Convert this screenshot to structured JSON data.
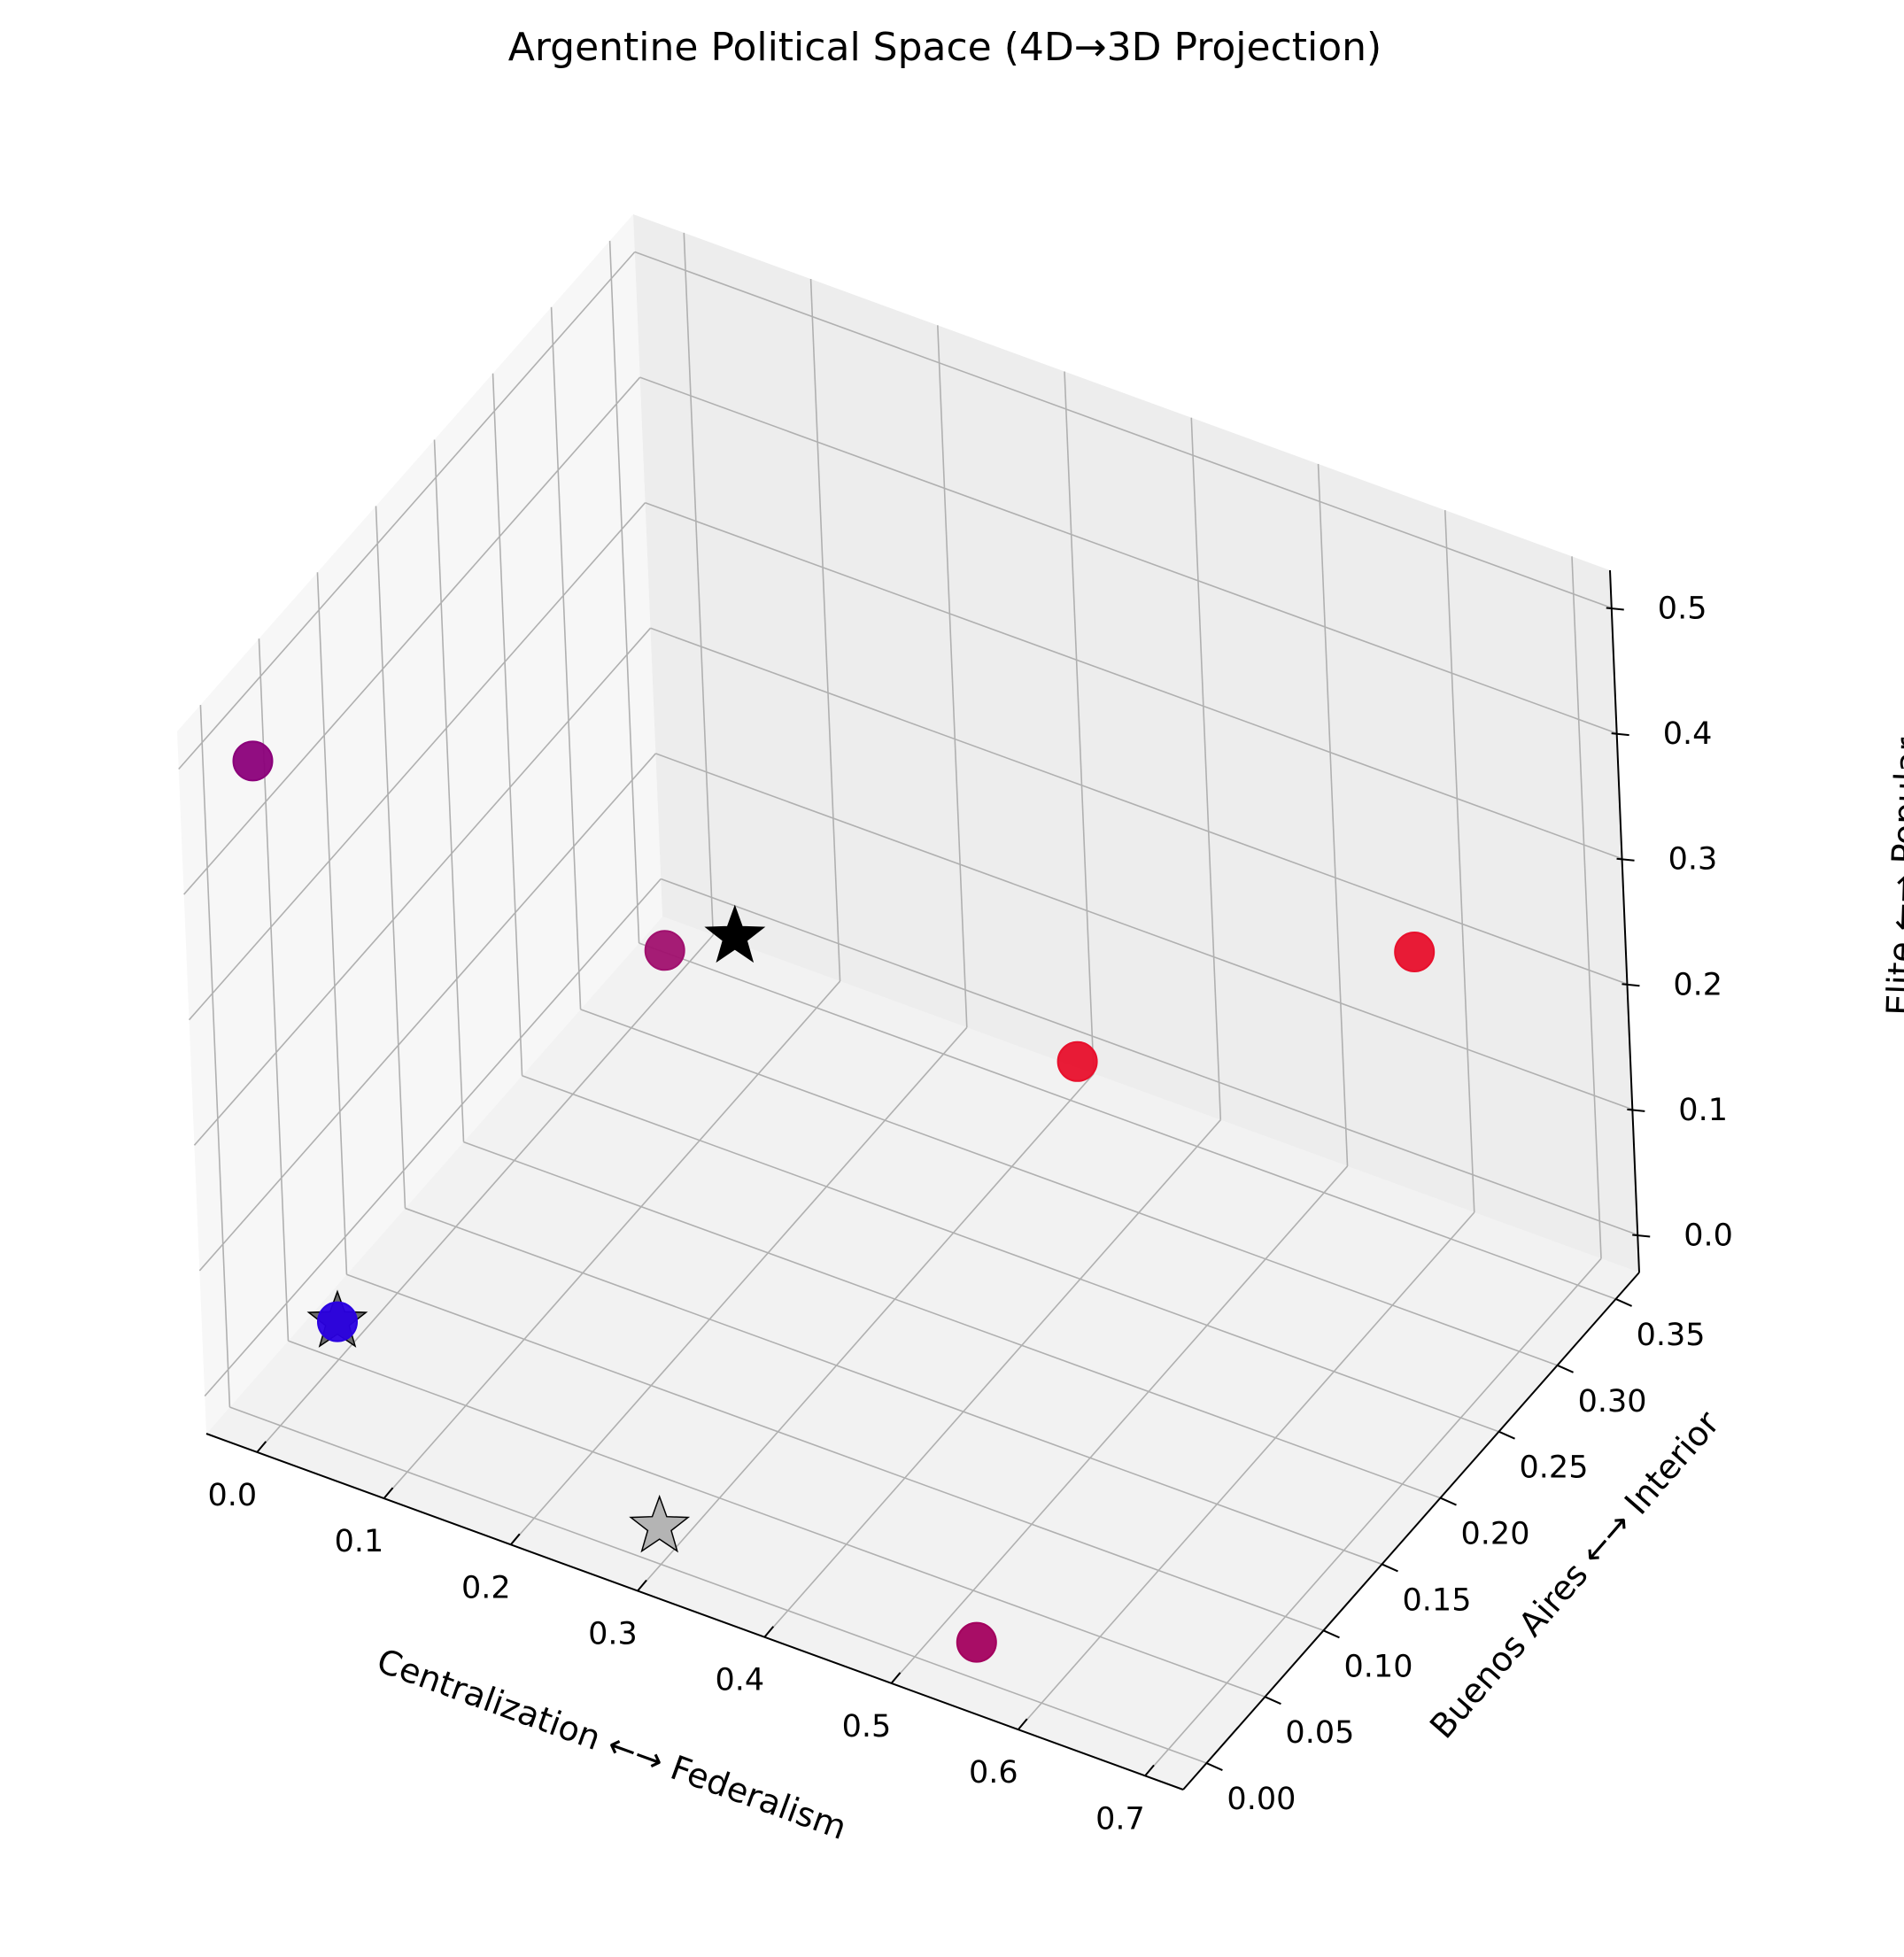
{
  "chart_data": {
    "type": "scatter",
    "projection": "3d",
    "title": "Argentine Political Space (4D→3D Projection)",
    "xlabel": "Centralization ←→ Federalism",
    "ylabel": "Buenos Aires ←→ Interior",
    "zlabel": "Elite ←→ Popular",
    "xlim": [
      -0.04,
      0.73
    ],
    "ylim": [
      -0.02,
      0.37
    ],
    "zlim": [
      -0.03,
      0.53
    ],
    "x_ticks": [
      "0.0",
      "0.1",
      "0.2",
      "0.3",
      "0.4",
      "0.5",
      "0.6",
      "0.7"
    ],
    "y_ticks": [
      "0.00",
      "0.05",
      "0.10",
      "0.15",
      "0.20",
      "0.25",
      "0.30",
      "0.35"
    ],
    "z_ticks": [
      "0.0",
      "0.1",
      "0.2",
      "0.3",
      "0.4",
      "0.5"
    ],
    "grid": true,
    "points": [
      {
        "x": 0.0,
        "y": 0.0,
        "z": 0.5,
        "marker": "circle",
        "color": "#8b007a"
      },
      {
        "x": 0.65,
        "y": 0.0,
        "z": 0.5,
        "marker": "circle",
        "color": "#e8102c"
      },
      {
        "x": 0.6,
        "y": 0.33,
        "z": 0.22,
        "marker": "circle",
        "color": "#e8102c"
      },
      {
        "x": 0.0,
        "y": 0.33,
        "z": 0.0,
        "marker": "circle",
        "color": "#a0106e"
      },
      {
        "x": 0.0,
        "y": 0.05,
        "z": 0.0,
        "marker": "circle",
        "color": "#2a00e0"
      },
      {
        "x": 0.55,
        "y": 0.0,
        "z": 0.0,
        "marker": "circle",
        "color": "#a3005e"
      },
      {
        "x": 0.38,
        "y": 0.0,
        "z": 0.5,
        "marker": "star",
        "color": "#000000"
      },
      {
        "x": 0.0,
        "y": 0.05,
        "z": 0.0,
        "marker": "star",
        "color": "#555555"
      },
      {
        "x": 0.3,
        "y": 0.0,
        "z": 0.0,
        "marker": "star",
        "color": "#a9a9a9"
      }
    ]
  }
}
